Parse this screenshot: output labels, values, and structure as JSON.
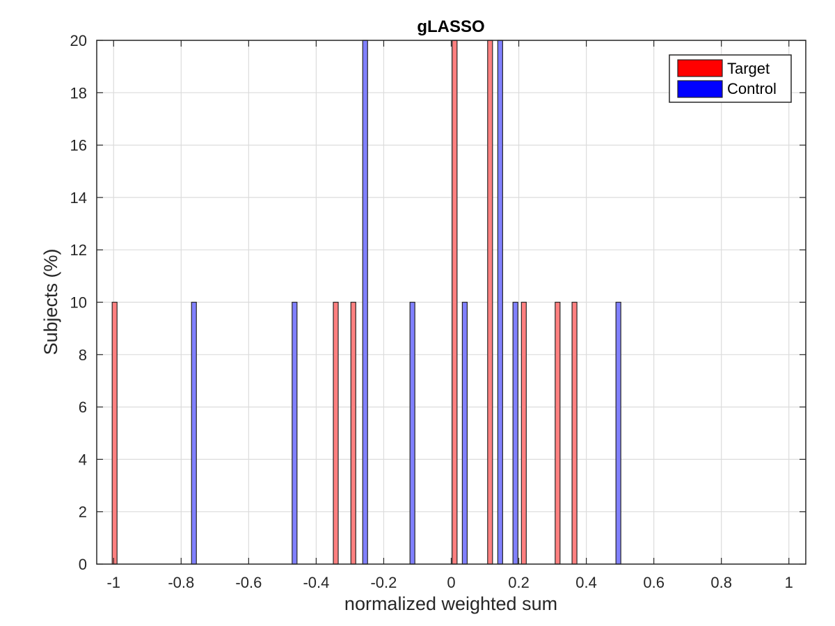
{
  "chart_data": {
    "type": "bar",
    "title": "gLASSO",
    "xlabel": "normalized weighted sum",
    "ylabel": "Subjects (%)",
    "xlim": [
      -1.05,
      1.05
    ],
    "ylim": [
      0,
      20
    ],
    "xticks": [
      -1,
      -0.8,
      -0.6,
      -0.4,
      -0.2,
      0,
      0.2,
      0.4,
      0.6,
      0.8,
      1
    ],
    "xtick_labels": [
      "-1",
      "-0.8",
      "-0.6",
      "-0.4",
      "-0.2",
      "0",
      "0.2",
      "0.4",
      "0.6",
      "0.8",
      "1"
    ],
    "yticks": [
      0,
      2,
      4,
      6,
      8,
      10,
      12,
      14,
      16,
      18,
      20
    ],
    "ytick_labels": [
      "0",
      "2",
      "4",
      "6",
      "8",
      "10",
      "12",
      "14",
      "16",
      "18",
      "20"
    ],
    "grid": true,
    "legend_position": "top-right",
    "series": [
      {
        "name": "Target",
        "color": "#ff8080",
        "legend_color": "#ff0000",
        "x": [
          -0.997,
          -0.342,
          -0.29,
          0.01,
          0.115,
          0.215,
          0.315,
          0.365
        ],
        "values": [
          10,
          10,
          10,
          20,
          20,
          10,
          10,
          10
        ]
      },
      {
        "name": "Control",
        "color": "#8080ff",
        "legend_color": "#0000ff",
        "x": [
          -0.762,
          -0.464,
          -0.255,
          -0.115,
          0.04,
          0.145,
          0.19,
          0.495
        ],
        "values": [
          10,
          10,
          20,
          10,
          10,
          20,
          10,
          10
        ]
      }
    ]
  }
}
